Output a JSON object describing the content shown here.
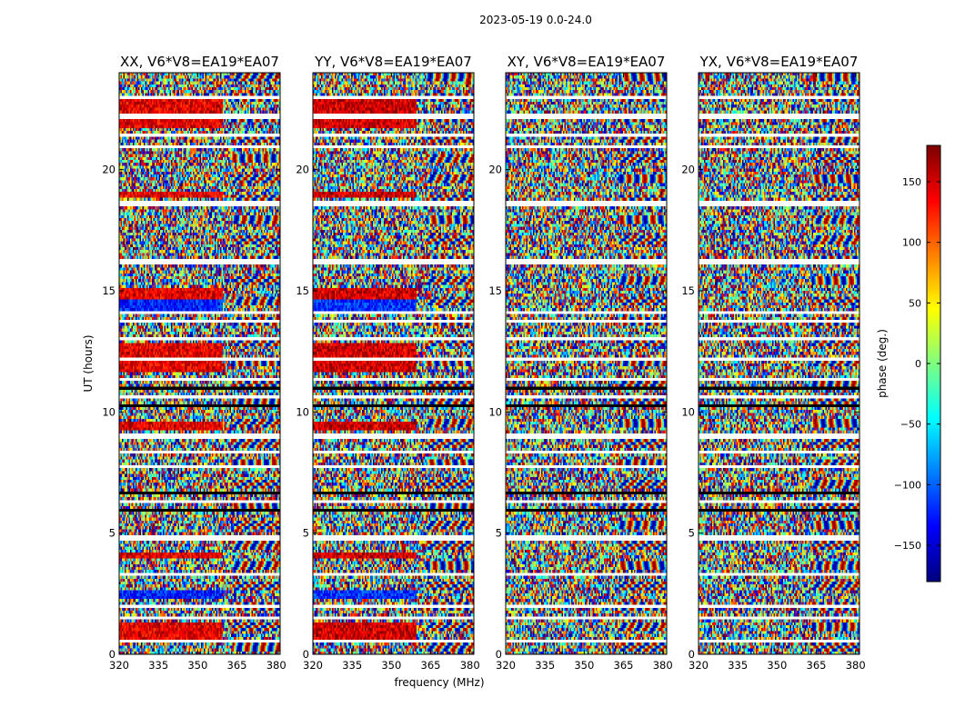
{
  "chart_data": {
    "type": "heatmap",
    "title": "2023-05-19 0.0-24.0",
    "xlabel": "frequency (MHz)",
    "ylabel": "UT (hours)",
    "xlim": [
      320,
      381.5
    ],
    "ylim": [
      0,
      24
    ],
    "x_ticks": [
      "320",
      "335",
      "350",
      "365",
      "380"
    ],
    "x_tick_values": [
      320,
      335,
      350,
      365,
      380
    ],
    "y_ticks": [
      "0",
      "5",
      "10",
      "15",
      "20"
    ],
    "y_tick_values": [
      0,
      5,
      10,
      15,
      20
    ],
    "panels": [
      {
        "title": "XX, V6*V8=EA19*EA07",
        "polarization": "XX"
      },
      {
        "title": "YY, V6*V8=EA19*EA07",
        "polarization": "YY"
      },
      {
        "title": "XY, V6*V8=EA19*EA07",
        "polarization": "XY"
      },
      {
        "title": "YX, V6*V8=EA19*EA07",
        "polarization": "YX"
      }
    ],
    "colorbar": {
      "label": "phase (deg.)",
      "range": [
        -180,
        180
      ],
      "ticks": [
        "−150",
        "−100",
        "−50",
        "0",
        "50",
        "100",
        "150"
      ],
      "tick_values": [
        -150,
        -100,
        -50,
        0,
        50,
        100,
        150
      ],
      "colormap": "jet"
    },
    "coherent_bands_ut": [
      [
        0.6,
        1.3
      ],
      [
        2.3,
        2.6
      ],
      [
        3.9,
        4.2
      ],
      [
        9.2,
        9.6
      ],
      [
        11.6,
        12.8
      ],
      [
        14.2,
        15.1
      ],
      [
        18.9,
        19.1
      ],
      [
        21.7,
        22.9
      ]
    ],
    "blank_rows_ut": [
      0.5,
      1.45,
      2.0,
      3.3,
      4.8,
      7.7,
      8.3,
      9.0,
      10.6,
      12.2,
      13.0,
      13.7,
      14.1,
      16.2,
      18.6,
      20.9,
      21.4,
      22.2,
      23.0
    ],
    "flagged_ranges_ut": [
      [
        5.6,
        7.0
      ],
      [
        10.0,
        11.5
      ]
    ]
  }
}
